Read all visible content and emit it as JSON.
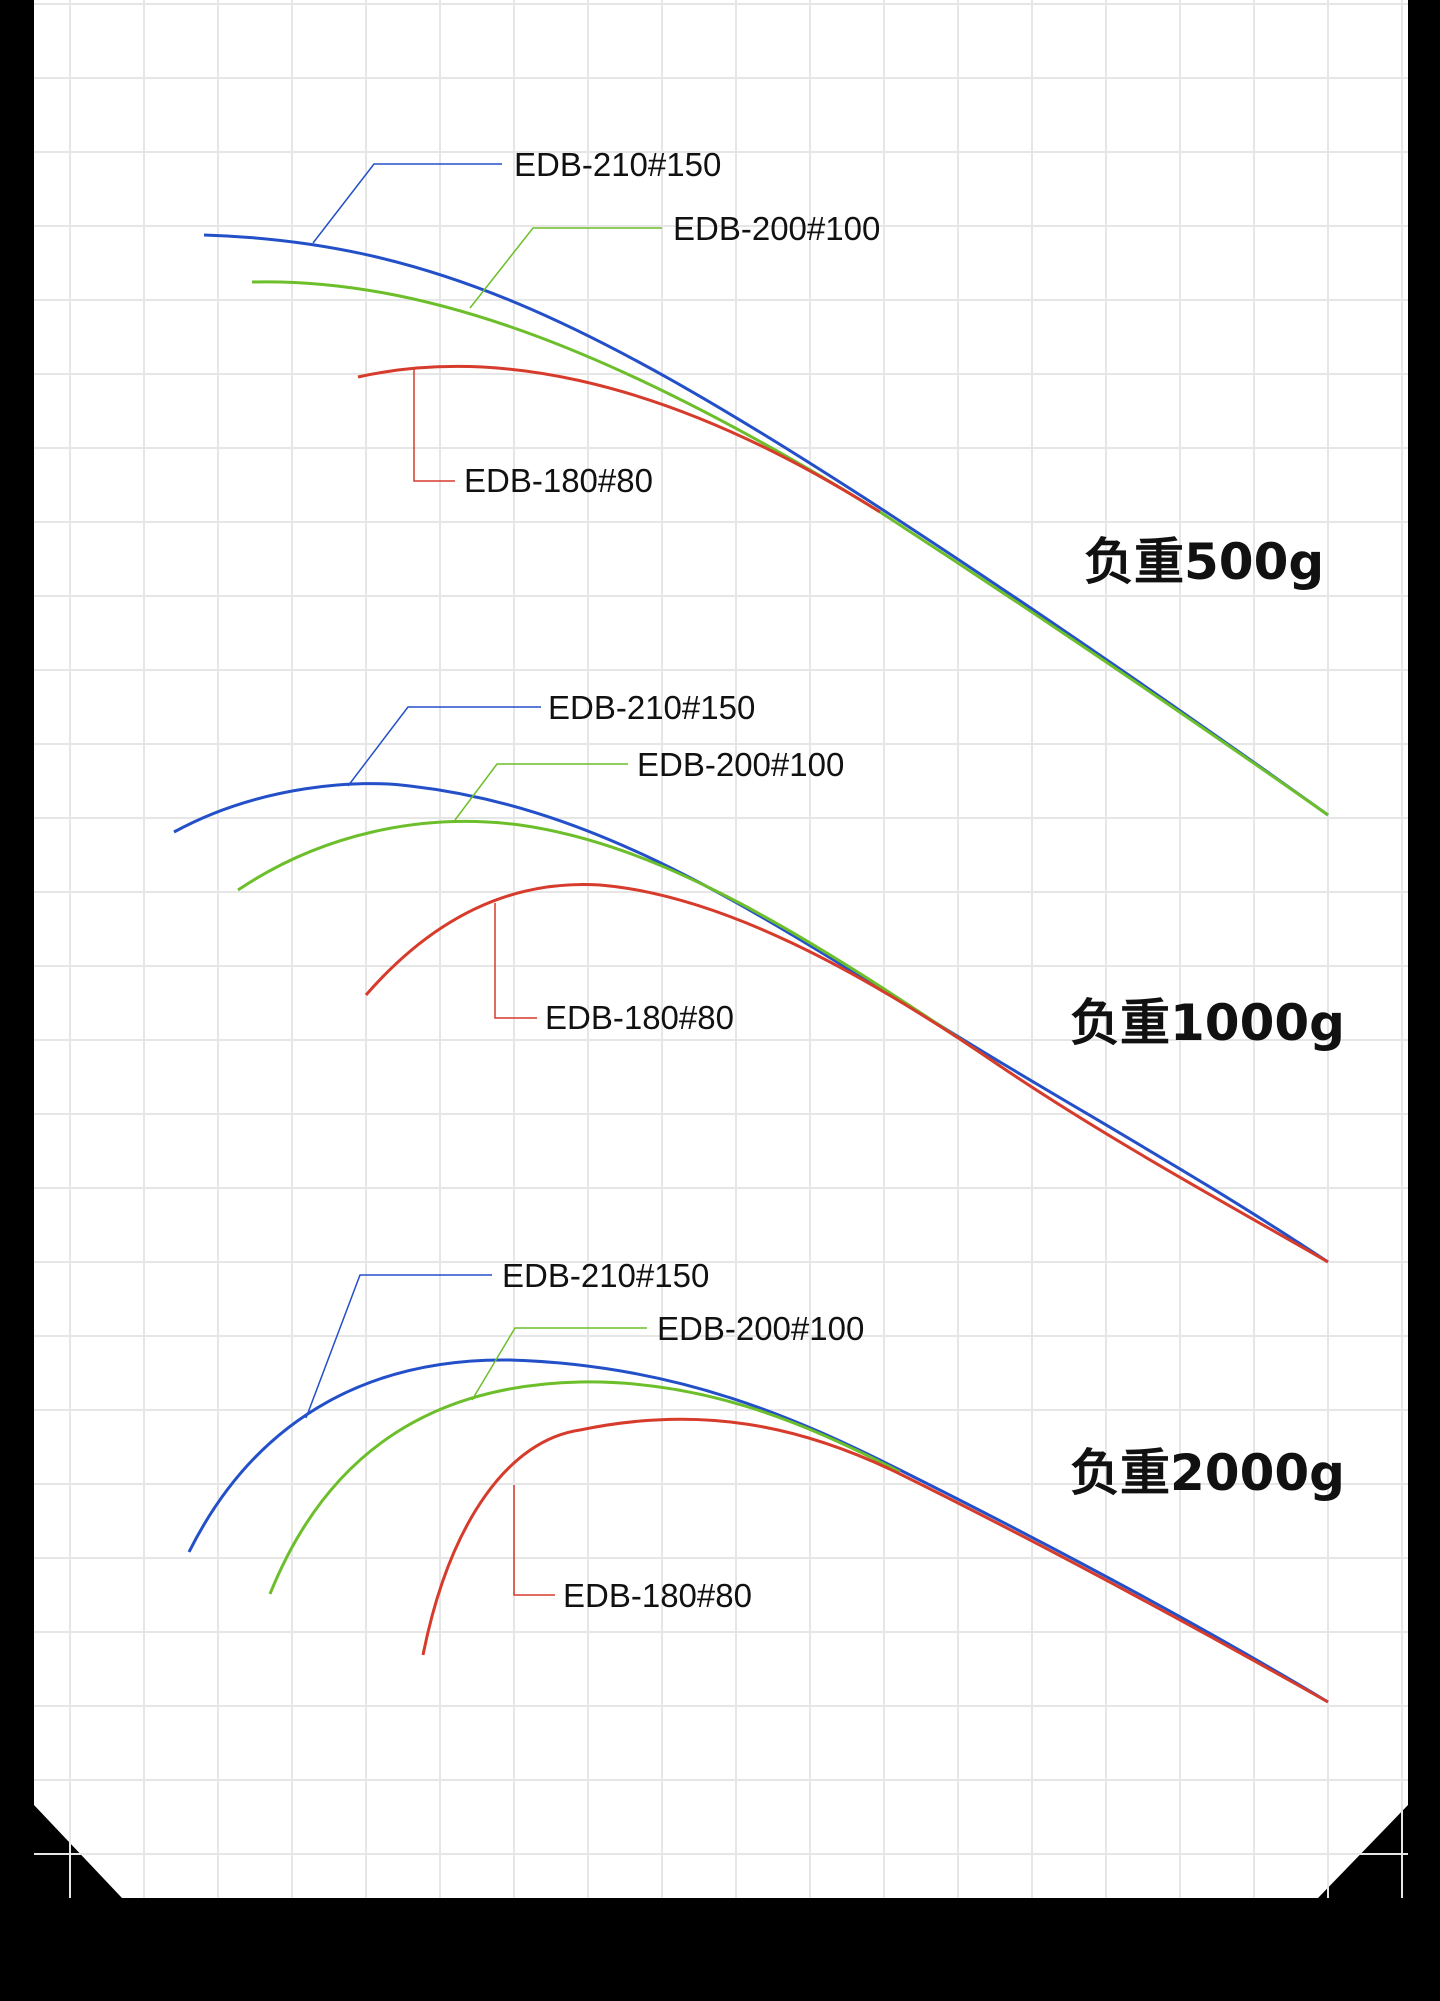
{
  "colors": {
    "background": "#000000",
    "panel": "#ffffff",
    "grid": "#e6e6e6",
    "edb_210": "#2350c8",
    "edb_200": "#6cbf2a",
    "edb_180": "#d63b2b",
    "text": "#111111"
  },
  "series_labels": {
    "edb_210": "EDB-210#150",
    "edb_200": "EDB-200#100",
    "edb_180": "EDB-180#80"
  },
  "groups": [
    {
      "id": "load-500",
      "load_label": "负重500g"
    },
    {
      "id": "load-1000",
      "load_label": "负重1000g"
    },
    {
      "id": "load-2000",
      "load_label": "负重2000g"
    }
  ]
}
